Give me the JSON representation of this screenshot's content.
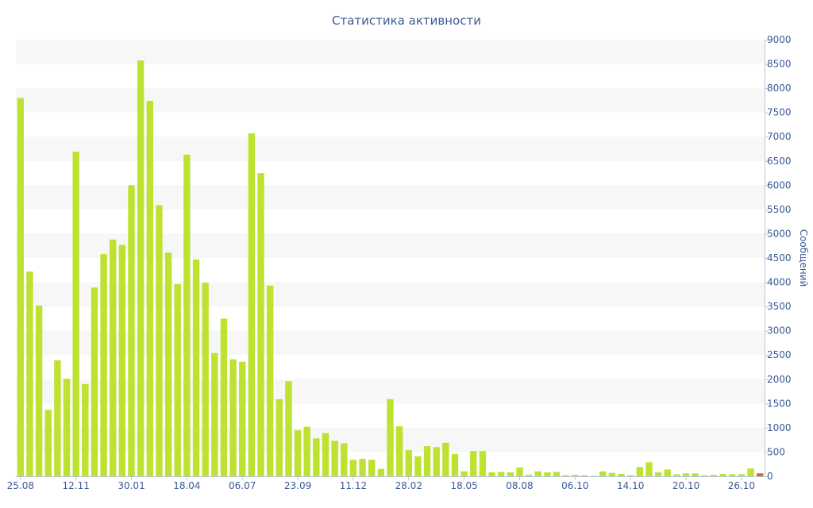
{
  "chart_data": {
    "type": "bar",
    "title": "Статистика активности",
    "xlabel": "",
    "ylabel": "Сообщений",
    "ylim": [
      0,
      9000
    ],
    "yticks": [
      0,
      500,
      1000,
      1500,
      2000,
      2500,
      3000,
      3500,
      4000,
      4500,
      5000,
      5500,
      6000,
      6500,
      7000,
      7500,
      8000,
      8500,
      9000
    ],
    "y_axis_position": "right",
    "grid": "alternating horizontal bands",
    "legend": "none",
    "xticks": [
      {
        "index": 0,
        "label": "25.08"
      },
      {
        "index": 6,
        "label": "12.11"
      },
      {
        "index": 12,
        "label": "30.01"
      },
      {
        "index": 18,
        "label": "18.04"
      },
      {
        "index": 24,
        "label": "06.07"
      },
      {
        "index": 30,
        "label": "23.09"
      },
      {
        "index": 36,
        "label": "11.12"
      },
      {
        "index": 42,
        "label": "28.02"
      },
      {
        "index": 48,
        "label": "18.05"
      },
      {
        "index": 54,
        "label": "08.08"
      },
      {
        "index": 60,
        "label": "06.10"
      },
      {
        "index": 66,
        "label": "14.10"
      },
      {
        "index": 72,
        "label": "20.10"
      },
      {
        "index": 78,
        "label": "26.10"
      }
    ],
    "values": [
      7800,
      4220,
      3520,
      1370,
      2390,
      2010,
      6690,
      1900,
      3890,
      4580,
      4880,
      4770,
      6000,
      8570,
      7740,
      5590,
      4610,
      3960,
      6630,
      4470,
      3990,
      2540,
      3250,
      2410,
      2360,
      7070,
      6250,
      3930,
      1590,
      1960,
      950,
      1020,
      780,
      890,
      730,
      680,
      340,
      360,
      340,
      150,
      1590,
      1030,
      540,
      410,
      620,
      600,
      690,
      460,
      100,
      520,
      520,
      80,
      90,
      80,
      180,
      30,
      100,
      80,
      90,
      20,
      30,
      20,
      10,
      100,
      70,
      50,
      20,
      190,
      290,
      80,
      140,
      40,
      60,
      60,
      20,
      30,
      50,
      40,
      40,
      160,
      60
    ],
    "colors": {
      "bar": "#bde22f",
      "last_bar": "#d9642a",
      "text": "#3d5a96",
      "band": "#f7f7f7",
      "axis": "#b8c4dc"
    }
  }
}
